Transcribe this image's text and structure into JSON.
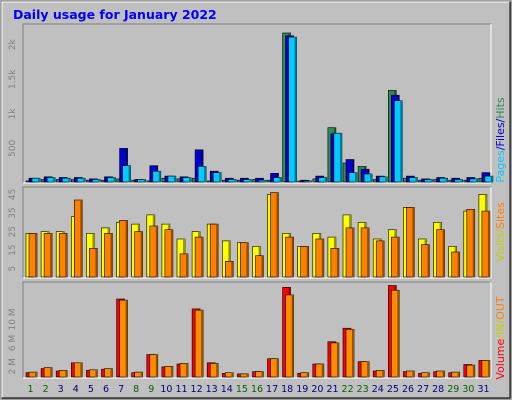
{
  "chart_data": {
    "type": "bar",
    "title": "Daily usage for January 2022",
    "categories": [
      "1",
      "2",
      "3",
      "4",
      "5",
      "6",
      "7",
      "8",
      "9",
      "10",
      "11",
      "12",
      "13",
      "14",
      "15",
      "16",
      "17",
      "18",
      "19",
      "20",
      "21",
      "22",
      "23",
      "24",
      "25",
      "26",
      "27",
      "28",
      "29",
      "30",
      "31"
    ],
    "weekend_days": [
      1,
      2,
      8,
      9,
      15,
      16,
      22,
      23,
      29,
      30
    ],
    "panels": [
      {
        "id": "hits",
        "ylim": [
          0,
          2300
        ],
        "yticks": [
          500,
          1000,
          1500,
          2000
        ],
        "ytick_labels": [
          "500",
          "1k",
          "1.5k",
          "2k"
        ],
        "series": [
          {
            "name": "Pages",
            "color": "#2e8b57",
            "values": [
              30,
              50,
              50,
              50,
              40,
              40,
              60,
              40,
              30,
              70,
              60,
              70,
              20,
              40,
              40,
              50,
              40,
              2170,
              20,
              60,
              800,
              290,
              240,
              50,
              1340,
              70,
              40,
              50,
              40,
              40,
              70
            ]
          },
          {
            "name": "Files",
            "color": "#0000cc",
            "values": [
              70,
              90,
              80,
              80,
              60,
              90,
              500,
              50,
              250,
              100,
              90,
              480,
              170,
              70,
              70,
              70,
              140,
              2130,
              40,
              100,
              710,
              340,
              200,
              100,
              1270,
              100,
              60,
              80,
              70,
              80,
              150
            ]
          },
          {
            "name": "Hits",
            "color": "#00ccff",
            "values": [
              70,
              80,
              70,
              70,
              50,
              80,
              250,
              50,
              170,
              100,
              80,
              240,
              150,
              50,
              50,
              40,
              80,
              2110,
              30,
              80,
              720,
              150,
              130,
              90,
              1190,
              80,
              50,
              70,
              50,
              60,
              100
            ]
          }
        ],
        "side_label": [
          "Pages",
          "Files",
          "Hits"
        ]
      },
      {
        "id": "visits",
        "ylim": [
          0,
          49
        ],
        "yticks": [
          5,
          15,
          25,
          35,
          45
        ],
        "ytick_labels": [
          "5",
          "15",
          "25",
          "35",
          "45"
        ],
        "series": [
          {
            "name": "Sites",
            "color": "#ffff00",
            "values": [
              24,
              25,
              25,
              33,
              24,
              27,
              30,
              29,
              34,
              29,
              21,
              25,
              29,
              20,
              19,
              17,
              45,
              24,
              17,
              24,
              22,
              34,
              30,
              21,
              26,
              38,
              21,
              30,
              17,
              36,
              45
            ]
          },
          {
            "name": "Visits",
            "color": "#ff8000",
            "values": [
              24,
              24,
              24,
              42,
              16,
              24,
              31,
              25,
              28,
              26,
              13,
              22,
              29,
              9,
              19,
              12,
              46,
              22,
              17,
              21,
              16,
              27,
              27,
              20,
              22,
              38,
              18,
              26,
              14,
              37,
              36
            ]
          }
        ],
        "side_label": [
          "Visits",
          "Sites"
        ]
      },
      {
        "id": "volume",
        "ylim": [
          0,
          16.4
        ],
        "yticks": [
          2,
          6,
          10
        ],
        "ytick_labels": [
          "2 M",
          "6 M",
          "10 M"
        ],
        "series": [
          {
            "name": "Volume",
            "color": "#ff0000",
            "values": [
              0.9,
              1.6,
              1.2,
              2.6,
              1.3,
              1.5,
              13.5,
              0.9,
              4.0,
              1.9,
              2.4,
              11.8,
              2.6,
              0.8,
              0.7,
              1.1,
              3.3,
              15.5,
              0.8,
              2.4,
              6.2,
              8.5,
              2.8,
              1.2,
              15.8,
              1.1,
              0.8,
              1.1,
              0.9,
              2.3,
              3.0
            ]
          },
          {
            "name": "OUT",
            "color": "#ff8c00",
            "values": [
              1.0,
              1.8,
              1.3,
              2.6,
              1.4,
              1.6,
              13.3,
              1.0,
              4.0,
              2.0,
              2.5,
              11.6,
              2.5,
              0.9,
              0.7,
              1.1,
              3.3,
              14.2,
              0.9,
              2.4,
              6.0,
              8.3,
              2.8,
              1.3,
              15.0,
              1.2,
              0.9,
              1.2,
              1.0,
              2.2,
              3.0
            ]
          }
        ],
        "side_label": [
          "Volume",
          "IN",
          "OUT"
        ]
      }
    ],
    "colors": {
      "background": "#c0c0c0",
      "title": "#0000ff",
      "ticks": "#808080",
      "weekday": "#000080",
      "weekend": "#006600"
    }
  },
  "side_labels": {
    "hits": [
      {
        "text": "Pages",
        "color": "#00ccff"
      },
      {
        "text": "/",
        "color": "#0000cc"
      },
      {
        "text": "Files",
        "color": "#0000cc"
      },
      {
        "text": "/",
        "color": "#0000cc"
      },
      {
        "text": "Hits",
        "color": "#2e8b57"
      }
    ],
    "visits": [
      {
        "text": "Visits",
        "color": "#cccc00"
      },
      {
        "text": "/",
        "color": "#cccc00"
      },
      {
        "text": "Sites",
        "color": "#ff8000"
      }
    ],
    "volume": [
      {
        "text": "Volume",
        "color": "#ff0000"
      },
      {
        "text": "/",
        "color": "#cccc00"
      },
      {
        "text": "IN",
        "color": "#cccc00"
      },
      {
        "text": "/",
        "color": "#cccc00"
      },
      {
        "text": "OUT",
        "color": "#ff8000"
      }
    ]
  }
}
